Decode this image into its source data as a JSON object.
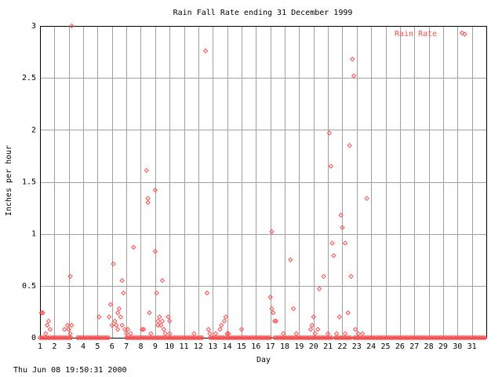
{
  "colors": {
    "series": "#ff4d4d",
    "grid": "#a0a0a0",
    "axis": "#000000",
    "background": "#ffffff"
  },
  "footer": {
    "timestamp": "Thu Jun 08 19:50:31 2000"
  },
  "chart_data": {
    "type": "scatter",
    "title": "Rain Fall Rate ending 31 December 1999",
    "xlabel": "Day",
    "ylabel": "Inches per hour",
    "xlim": [
      1,
      32
    ],
    "ylim": [
      0,
      3
    ],
    "xticks": [
      1,
      2,
      3,
      4,
      5,
      6,
      7,
      8,
      9,
      10,
      11,
      12,
      13,
      14,
      15,
      16,
      17,
      18,
      19,
      20,
      21,
      22,
      23,
      24,
      25,
      26,
      27,
      28,
      29,
      30,
      31
    ],
    "yticks": [
      0,
      0.5,
      1,
      1.5,
      2,
      2.5,
      3
    ],
    "ytick_labels": [
      "0",
      "0.5",
      "1",
      "1.5",
      "2",
      "2.5",
      "3"
    ],
    "grid": true,
    "legend": {
      "position": "top-right"
    },
    "series": [
      {
        "name": "Rain Rate",
        "marker": "diamond",
        "points": [
          [
            1.1,
            0.24
          ],
          [
            1.2,
            0.24
          ],
          [
            1.4,
            0.04
          ],
          [
            1.6,
            0.16
          ],
          [
            1.7,
            0.08
          ],
          [
            1.5,
            0.12
          ],
          [
            2.7,
            0.08
          ],
          [
            2.9,
            0.12
          ],
          [
            3.0,
            0.08
          ],
          [
            3.1,
            0.04
          ],
          [
            3.2,
            0.12
          ],
          [
            3.1,
            0.59
          ],
          [
            3.2,
            3.0
          ],
          [
            5.1,
            0.2
          ],
          [
            5.8,
            0.2
          ],
          [
            5.9,
            0.32
          ],
          [
            6.0,
            0.12
          ],
          [
            6.1,
            0.71
          ],
          [
            6.2,
            0.16
          ],
          [
            6.3,
            0.12
          ],
          [
            6.4,
            0.08
          ],
          [
            6.4,
            0.24
          ],
          [
            6.5,
            0.28
          ],
          [
            6.6,
            0.2
          ],
          [
            6.7,
            0.12
          ],
          [
            6.7,
            0.55
          ],
          [
            6.8,
            0.43
          ],
          [
            6.9,
            0.08
          ],
          [
            7.0,
            0.04
          ],
          [
            7.1,
            0.08
          ],
          [
            7.3,
            0.04
          ],
          [
            7.5,
            0.87
          ],
          [
            8.1,
            0.08
          ],
          [
            8.2,
            0.08
          ],
          [
            8.4,
            1.61
          ],
          [
            8.5,
            1.3
          ],
          [
            8.5,
            1.34
          ],
          [
            8.6,
            0.24
          ],
          [
            8.7,
            0.04
          ],
          [
            9.0,
            0.83
          ],
          [
            9.0,
            1.42
          ],
          [
            9.1,
            0.43
          ],
          [
            9.2,
            0.12
          ],
          [
            9.2,
            0.16
          ],
          [
            9.3,
            0.2
          ],
          [
            9.4,
            0.12
          ],
          [
            9.5,
            0.55
          ],
          [
            9.5,
            0.16
          ],
          [
            9.6,
            0.08
          ],
          [
            9.7,
            0.04
          ],
          [
            9.9,
            0.2
          ],
          [
            10.0,
            0.16
          ],
          [
            10.0,
            0.04
          ],
          [
            11.7,
            0.04
          ],
          [
            12.5,
            2.76
          ],
          [
            12.6,
            0.43
          ],
          [
            12.7,
            0.08
          ],
          [
            12.8,
            0.04
          ],
          [
            13.2,
            0.04
          ],
          [
            13.5,
            0.08
          ],
          [
            13.6,
            0.12
          ],
          [
            13.8,
            0.16
          ],
          [
            13.9,
            0.2
          ],
          [
            14.0,
            0.04
          ],
          [
            14.1,
            0.04
          ],
          [
            15.0,
            0.08
          ],
          [
            17.0,
            0.39
          ],
          [
            17.1,
            0.28
          ],
          [
            17.1,
            1.02
          ],
          [
            17.2,
            0.24
          ],
          [
            17.3,
            0.16
          ],
          [
            17.4,
            0.16
          ],
          [
            17.9,
            0.04
          ],
          [
            18.4,
            0.75
          ],
          [
            18.6,
            0.28
          ],
          [
            18.8,
            0.04
          ],
          [
            19.8,
            0.08
          ],
          [
            19.9,
            0.12
          ],
          [
            20.0,
            0.2
          ],
          [
            20.1,
            0.04
          ],
          [
            20.3,
            0.08
          ],
          [
            20.4,
            0.47
          ],
          [
            20.7,
            0.59
          ],
          [
            21.0,
            0.04
          ],
          [
            21.1,
            1.97
          ],
          [
            21.2,
            1.65
          ],
          [
            21.3,
            0.91
          ],
          [
            21.4,
            0.79
          ],
          [
            21.6,
            0.04
          ],
          [
            21.8,
            0.2
          ],
          [
            21.9,
            1.18
          ],
          [
            22.0,
            1.06
          ],
          [
            22.2,
            0.91
          ],
          [
            22.2,
            0.04
          ],
          [
            22.4,
            0.24
          ],
          [
            22.5,
            1.85
          ],
          [
            22.6,
            0.59
          ],
          [
            22.7,
            2.68
          ],
          [
            22.8,
            2.52
          ],
          [
            22.9,
            0.08
          ],
          [
            23.1,
            0.04
          ],
          [
            23.4,
            0.04
          ],
          [
            23.7,
            1.34
          ],
          [
            30.5,
            2.92
          ]
        ],
        "baseline_zero_ranges": [
          [
            1.0,
            3.2
          ],
          [
            3.6,
            5.8
          ],
          [
            7.0,
            12.3
          ],
          [
            12.8,
            17.0
          ],
          [
            17.3,
            21.3
          ],
          [
            21.5,
            22.6
          ],
          [
            22.8,
            32.0
          ]
        ]
      }
    ]
  }
}
